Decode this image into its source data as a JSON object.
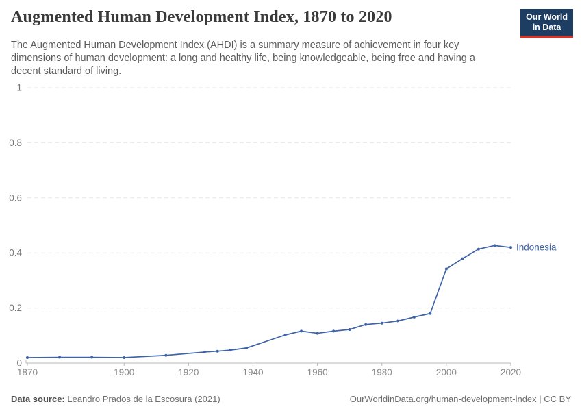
{
  "header": {
    "title": "Augmented Human Development Index, 1870 to 2020",
    "subtitle": "The Augmented Human Development Index (AHDI) is a summary measure of achievement in four key dimensions of human development: a long and healthy life, being knowledgeable, being free and having a decent standard of living.",
    "logo": {
      "line1": "Our World",
      "line2": "in Data",
      "bg_color": "#1d3d63",
      "bar_color": "#c43b33",
      "text_color": "#ffffff"
    }
  },
  "chart_data": {
    "type": "line",
    "title": "Augmented Human Development Index, 1870 to 2020",
    "xlabel": "",
    "ylabel": "",
    "xlim": [
      1870,
      2020
    ],
    "ylim": [
      0,
      1
    ],
    "x_ticks": [
      1870,
      1900,
      1920,
      1940,
      1960,
      1980,
      2000,
      2020
    ],
    "y_ticks": [
      0,
      0.2,
      0.4,
      0.6,
      0.8,
      1
    ],
    "grid": "horizontal-dashed",
    "legend_position": "end-of-line-label",
    "series": [
      {
        "name": "Indonesia",
        "color": "#3f63a8",
        "x": [
          1870,
          1880,
          1890,
          1900,
          1913,
          1925,
          1929,
          1933,
          1938,
          1950,
          1955,
          1960,
          1965,
          1970,
          1975,
          1980,
          1985,
          1990,
          1995,
          2000,
          2005,
          2010,
          2015,
          2020
        ],
        "values": [
          0.02,
          0.021,
          0.021,
          0.02,
          0.028,
          0.04,
          0.043,
          0.047,
          0.055,
          0.102,
          0.116,
          0.108,
          0.116,
          0.122,
          0.14,
          0.145,
          0.153,
          0.167,
          0.18,
          0.342,
          0.379,
          0.414,
          0.427,
          0.42
        ]
      }
    ]
  },
  "footer": {
    "source_label": "Data source:",
    "source_value": "Leandro Prados de la Escosura (2021)",
    "attribution": "OurWorldinData.org/human-development-index | CC BY"
  }
}
